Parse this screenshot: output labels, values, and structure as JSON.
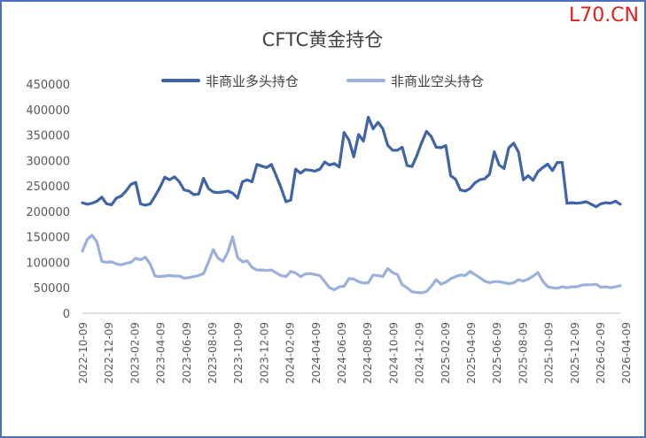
{
  "watermark": "L70.CN",
  "chart_data": {
    "type": "line",
    "title": "CFTC黄金持仓",
    "xlabel": "",
    "ylabel": "",
    "ylim": [
      0,
      450000
    ],
    "yticks": [
      0,
      50000,
      100000,
      150000,
      200000,
      250000,
      300000,
      350000,
      400000,
      450000
    ],
    "x_tick_labels": [
      "2022-10-09",
      "2022-12-09",
      "2023-02-09",
      "2023-04-09",
      "2023-06-09",
      "2023-08-09",
      "2023-10-09",
      "2023-12-09",
      "2024-02-09",
      "2024-04-09",
      "2024-06-09",
      "2024-08-09",
      "2024-10-09",
      "2024-12-09",
      "2025-02-09",
      "2025-04-09",
      "2025-06-09",
      "2025-08-09",
      "2025-10-09",
      "2025-12-09",
      "2026-02-09",
      "2026-04-09"
    ],
    "grid": false,
    "legend_position": "top",
    "series": [
      {
        "name": "非商业多头持仓",
        "color": "#3f64a8",
        "values": [
          217000,
          214000,
          216000,
          220000,
          228000,
          215000,
          213000,
          226000,
          230000,
          240000,
          253000,
          257000,
          215000,
          212000,
          215000,
          230000,
          247000,
          267000,
          262000,
          268000,
          258000,
          242000,
          240000,
          233000,
          234000,
          265000,
          245000,
          238000,
          237000,
          238000,
          240000,
          236000,
          226000,
          258000,
          262000,
          258000,
          292000,
          289000,
          286000,
          292000,
          270000,
          246000,
          219000,
          222000,
          283000,
          275000,
          282000,
          281000,
          279000,
          283000,
          297000,
          291000,
          294000,
          287000,
          355000,
          340000,
          307000,
          351000,
          338000,
          385000,
          362000,
          375000,
          362000,
          330000,
          320000,
          320000,
          326000,
          290000,
          288000,
          309000,
          335000,
          357000,
          347000,
          326000,
          325000,
          329000,
          270000,
          263000,
          242000,
          240000,
          245000,
          256000,
          262000,
          264000,
          273000,
          317000,
          291000,
          284000,
          325000,
          334000,
          316000,
          262000,
          270000,
          261000,
          278000,
          286000,
          293000,
          280000,
          296000,
          296000,
          216000,
          217000,
          216000,
          217000,
          219000,
          214000,
          209000,
          215000,
          217000,
          216000,
          220000,
          214000
        ]
      },
      {
        "name": "非商业空头持仓",
        "color": "#9bb0dd",
        "values": [
          122000,
          145000,
          153000,
          140000,
          102000,
          100000,
          101000,
          97000,
          95000,
          98000,
          100000,
          108000,
          105000,
          110000,
          96000,
          73000,
          72000,
          73000,
          74000,
          73000,
          73000,
          69000,
          70000,
          72000,
          74000,
          78000,
          100000,
          125000,
          108000,
          102000,
          120000,
          150000,
          110000,
          101000,
          103000,
          90000,
          85000,
          85000,
          84000,
          85000,
          79000,
          74000,
          72000,
          82000,
          79000,
          72000,
          77000,
          78000,
          76000,
          74000,
          62000,
          50000,
          46000,
          52000,
          53000,
          68000,
          67000,
          62000,
          59000,
          60000,
          75000,
          74000,
          72000,
          88000,
          80000,
          76000,
          56000,
          50000,
          42000,
          41000,
          40000,
          43000,
          53000,
          66000,
          57000,
          61000,
          68000,
          72000,
          75000,
          74000,
          82000,
          76000,
          70000,
          63000,
          60000,
          62000,
          62000,
          60000,
          58000,
          60000,
          66000,
          63000,
          67000,
          73000,
          80000,
          63000,
          52000,
          50000,
          49000,
          52000,
          50000,
          52000,
          52000,
          55000,
          56000,
          56000,
          57000,
          51000,
          52000,
          50000,
          52000,
          54000
        ]
      }
    ]
  }
}
